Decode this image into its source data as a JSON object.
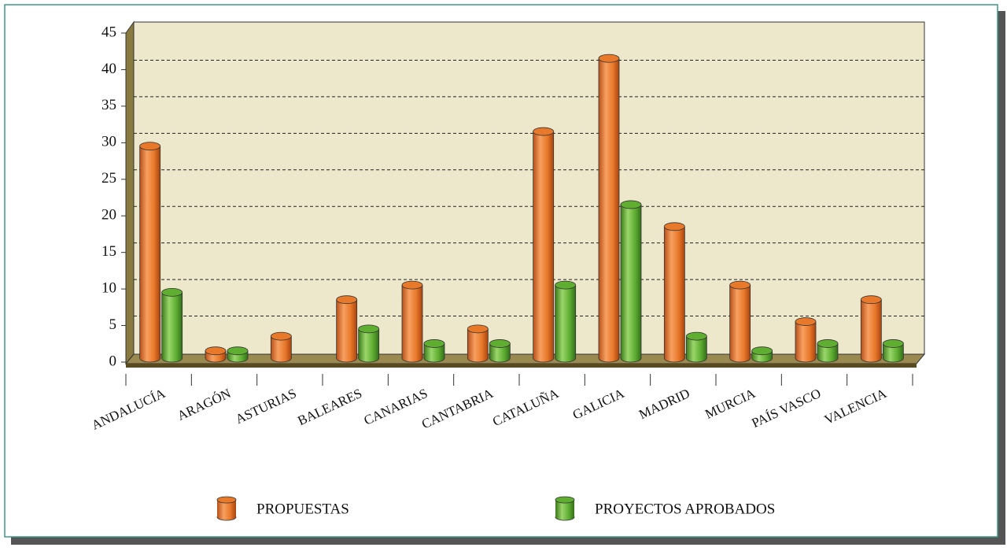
{
  "chart_data": {
    "type": "bar3d",
    "categories": [
      "ANDALUCÍA",
      "ARAGÓN",
      "ASTURIAS",
      "BALEARES",
      "CANARIAS",
      "CANTABRIA",
      "CATALUÑA",
      "GALICIA",
      "MADRID",
      "MURCIA",
      "PAÍS VASCO",
      "VALENCIA"
    ],
    "series": [
      {
        "name": "PROPUESTAS",
        "color": "#e8782a",
        "values": [
          29,
          1,
          3,
          8,
          10,
          4,
          31,
          41,
          18,
          10,
          5,
          8
        ]
      },
      {
        "name": "PROYECTOS APROBADOS",
        "color": "#5fae32",
        "values": [
          9,
          1,
          0,
          4,
          2,
          2,
          10,
          21,
          3,
          1,
          2,
          2
        ]
      }
    ],
    "ylim": [
      0,
      45
    ],
    "yticks": [
      0,
      5,
      10,
      15,
      20,
      25,
      30,
      35,
      40,
      45
    ],
    "grid": true,
    "legend": "bottom"
  }
}
